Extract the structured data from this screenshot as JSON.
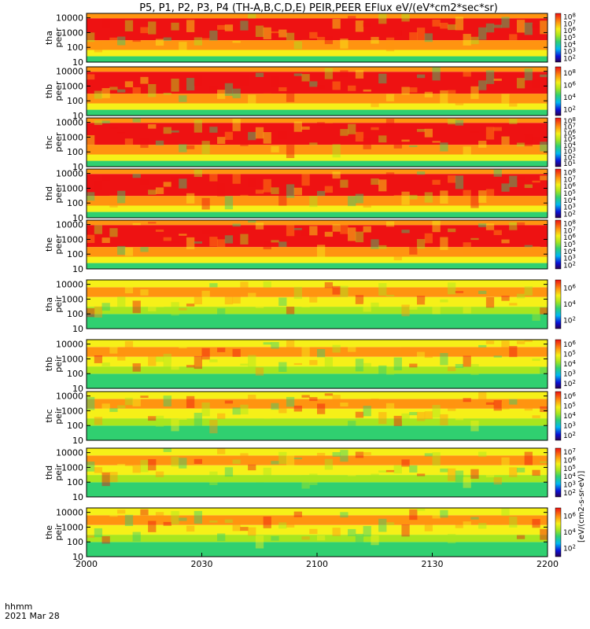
{
  "title": "P5, P1, P2, P3, P4 (TH-A,B,C,D,E) PEIR,PEER EFlux eV/(eV*cm2*sec*sr)",
  "time_axis": {
    "ticks": [
      "2000",
      "2030",
      "2100",
      "2130",
      "2200"
    ],
    "label_line1": "hhmm",
    "label_line2": "2021 Mar 28"
  },
  "colorbar_unit_label": "[eV/(cm2-s-sr-eV)]",
  "chart_data": {
    "type": "heatmap",
    "x_range": [
      "2000",
      "2200"
    ],
    "ylim": [
      10,
      20000
    ],
    "y_scale": "log",
    "y_ticks": [
      "10",
      "100",
      "1000",
      "10000"
    ],
    "panels": [
      {
        "probe": "tha",
        "species": "peer",
        "cb_ticks": [
          "10^2",
          "10^3",
          "10^4",
          "10^5",
          "10^6",
          "10^7",
          "10^8"
        ]
      },
      {
        "probe": "thb",
        "species": "peer",
        "cb_ticks": [
          "10^2",
          "10^4",
          "10^6",
          "10^8"
        ]
      },
      {
        "probe": "thc",
        "species": "peer",
        "cb_ticks": [
          "10^1",
          "10^2",
          "10^3",
          "10^4",
          "10^5",
          "10^6",
          "10^7",
          "10^8"
        ]
      },
      {
        "probe": "thd",
        "species": "peer",
        "cb_ticks": [
          "10^2",
          "10^3",
          "10^4",
          "10^5",
          "10^6",
          "10^7",
          "10^8"
        ]
      },
      {
        "probe": "the",
        "species": "peer",
        "cb_ticks": [
          "10^2",
          "10^3",
          "10^4",
          "10^5",
          "10^6",
          "10^7",
          "10^8"
        ]
      },
      {
        "probe": "tha",
        "species": "peir",
        "cb_ticks": [
          "10^2",
          "10^4",
          "10^6"
        ]
      },
      {
        "probe": "thb",
        "species": "peir",
        "cb_ticks": [
          "10^2",
          "10^3",
          "10^4",
          "10^5",
          "10^6"
        ]
      },
      {
        "probe": "thc",
        "species": "peir",
        "cb_ticks": [
          "10^2",
          "10^3",
          "10^4",
          "10^5",
          "10^6"
        ]
      },
      {
        "probe": "thd",
        "species": "peir",
        "cb_ticks": [
          "10^2",
          "10^3",
          "10^4",
          "10^5",
          "10^6",
          "10^7"
        ]
      },
      {
        "probe": "the",
        "species": "peir",
        "cb_ticks": [
          "10^2",
          "10^4",
          "10^6"
        ]
      }
    ]
  }
}
